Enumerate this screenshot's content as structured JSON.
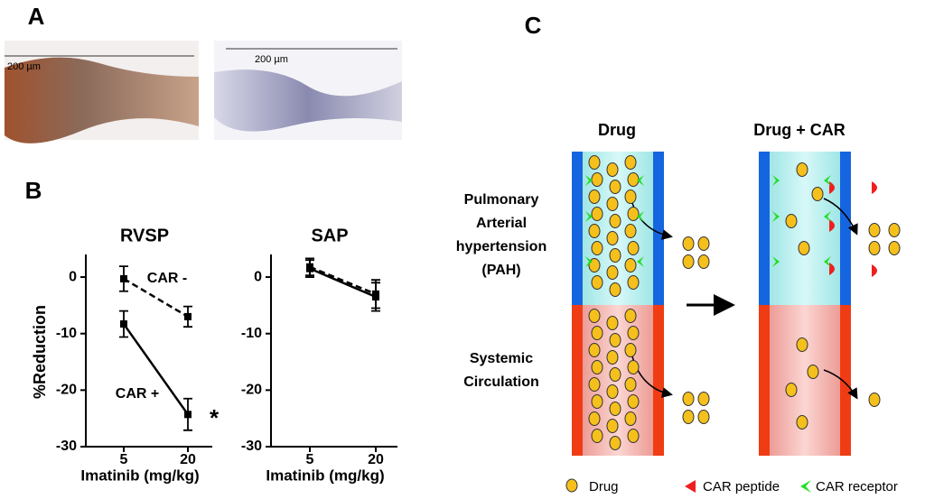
{
  "panels": [
    "A",
    "B",
    "C"
  ],
  "micrographs": [
    {
      "scale": "200 µm"
    },
    {
      "scale": "200 µm"
    }
  ],
  "chart_data": [
    {
      "type": "line",
      "title": "RVSP",
      "ylabel": "%Reduction",
      "xlabel": "Imatinib (mg/kg)",
      "categories": [
        "5",
        "20"
      ],
      "ylim": [
        -30,
        4
      ],
      "yticks": [
        0,
        -10,
        -20,
        -30
      ],
      "series": [
        {
          "name": "CAR -",
          "color": "#000000",
          "dashed": true,
          "values": [
            -0.3,
            -7
          ],
          "errors": [
            2.2,
            1.8
          ]
        },
        {
          "name": "CAR +",
          "color": "#000000",
          "dashed": false,
          "values": [
            -8.3,
            -24.3
          ],
          "errors": [
            2.3,
            2.8
          ]
        }
      ],
      "annotations": [
        "*"
      ]
    },
    {
      "type": "line",
      "title": "SAP",
      "xlabel": "Imatinib (mg/kg)",
      "categories": [
        "5",
        "20"
      ],
      "ylim": [
        -30,
        4
      ],
      "yticks": [
        0,
        -10,
        -20,
        -30
      ],
      "series": [
        {
          "color": "#000000",
          "dashed": true,
          "values": [
            1.8,
            -3
          ],
          "errors": [
            1.5,
            2.5
          ]
        },
        {
          "color": "#000000",
          "dashed": false,
          "values": [
            1.5,
            -3.5
          ],
          "errors": [
            1.5,
            2.5
          ]
        }
      ]
    }
  ],
  "diagram": {
    "columns": [
      "Drug",
      "Drug + CAR"
    ],
    "rows": [
      [
        "Pulmonary",
        "Arterial",
        "hypertension",
        "(PAH)"
      ],
      [
        "Systemic",
        "Circulation"
      ]
    ],
    "legend": [
      "Drug",
      "CAR peptide",
      "CAR receptor"
    ]
  }
}
